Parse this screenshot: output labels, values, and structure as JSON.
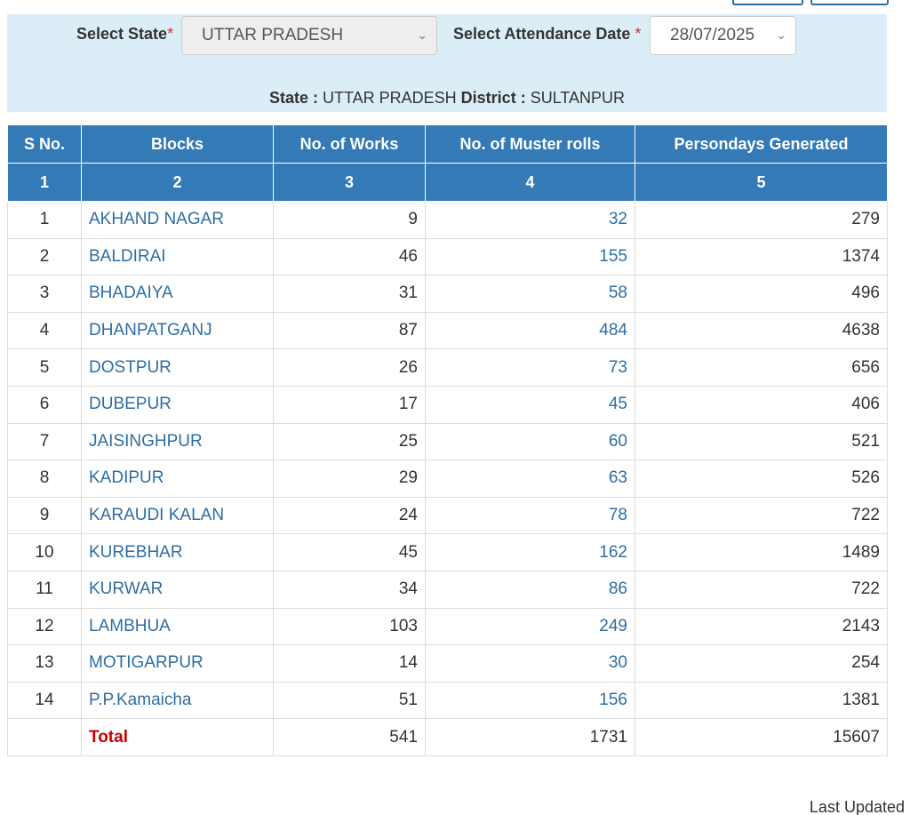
{
  "filters": {
    "state_label": "Select State",
    "state_value": "UTTAR PRADESH",
    "date_label": "Select Attendance Date",
    "date_value": "28/07/2025",
    "required_mark": "*"
  },
  "summary": {
    "state_key": "State :",
    "state_value": "UTTAR PRADESH",
    "district_key": "District :",
    "district_value": "SULTANPUR"
  },
  "table": {
    "headers": [
      "S No.",
      "Blocks",
      "No. of Works",
      "No. of Muster rolls",
      "Persondays Generated"
    ],
    "column_numbers": [
      "1",
      "2",
      "3",
      "4",
      "5"
    ],
    "rows": [
      {
        "sno": "1",
        "block": "AKHAND NAGAR",
        "works": "9",
        "muster": "32",
        "persondays": "279"
      },
      {
        "sno": "2",
        "block": "BALDIRAI",
        "works": "46",
        "muster": "155",
        "persondays": "1374"
      },
      {
        "sno": "3",
        "block": "BHADAIYA",
        "works": "31",
        "muster": "58",
        "persondays": "496"
      },
      {
        "sno": "4",
        "block": "DHANPATGANJ",
        "works": "87",
        "muster": "484",
        "persondays": "4638"
      },
      {
        "sno": "5",
        "block": "DOSTPUR",
        "works": "26",
        "muster": "73",
        "persondays": "656"
      },
      {
        "sno": "6",
        "block": "DUBEPUR",
        "works": "17",
        "muster": "45",
        "persondays": "406"
      },
      {
        "sno": "7",
        "block": "JAISINGHPUR",
        "works": "25",
        "muster": "60",
        "persondays": "521"
      },
      {
        "sno": "8",
        "block": "KADIPUR",
        "works": "29",
        "muster": "63",
        "persondays": "526"
      },
      {
        "sno": "9",
        "block": "KARAUDI KALAN",
        "works": "24",
        "muster": "78",
        "persondays": "722"
      },
      {
        "sno": "10",
        "block": "KUREBHAR",
        "works": "45",
        "muster": "162",
        "persondays": "1489"
      },
      {
        "sno": "11",
        "block": "KURWAR",
        "works": "34",
        "muster": "86",
        "persondays": "722"
      },
      {
        "sno": "12",
        "block": "LAMBHUA",
        "works": "103",
        "muster": "249",
        "persondays": "2143"
      },
      {
        "sno": "13",
        "block": "MOTIGARPUR",
        "works": "14",
        "muster": "30",
        "persondays": "254"
      },
      {
        "sno": "14",
        "block": "P.P.Kamaicha",
        "works": "51",
        "muster": "156",
        "persondays": "1381"
      }
    ],
    "total": {
      "label": "Total",
      "works": "541",
      "muster": "1731",
      "persondays": "15607"
    }
  },
  "footer": {
    "last_updated": "Last Updated"
  },
  "colors": {
    "header_bg": "#337ab7",
    "panel_bg": "#dbeef8",
    "link": "#2e6da4",
    "total_label": "#cc0000"
  }
}
